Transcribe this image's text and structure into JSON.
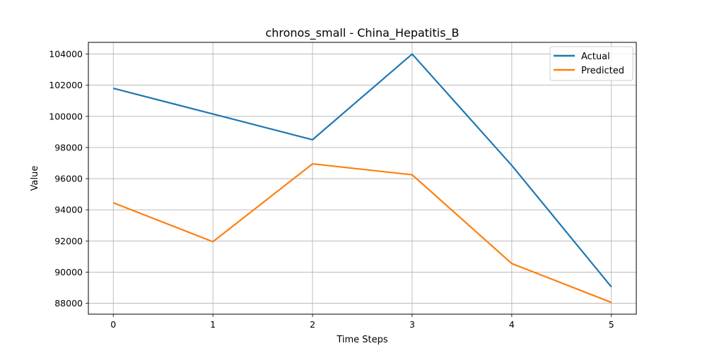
{
  "chart_data": {
    "type": "line",
    "title": "chronos_small - China_Hepatitis_B",
    "xlabel": "Time Steps",
    "ylabel": "Value",
    "x": [
      0,
      1,
      2,
      3,
      4,
      5
    ],
    "xticks": [
      "0",
      "1",
      "2",
      "3",
      "4",
      "5"
    ],
    "xlim": [
      -0.25,
      5.25
    ],
    "yticks": [
      "88000",
      "90000",
      "92000",
      "94000",
      "96000",
      "98000",
      "100000",
      "102000",
      "104000"
    ],
    "ylim": [
      87300,
      104750
    ],
    "grid": true,
    "legend_position": "top-right",
    "series": [
      {
        "name": "Actual",
        "color": "#1f77b4",
        "values": [
          101800,
          100150,
          98500,
          104000,
          96850,
          89050
        ]
      },
      {
        "name": "Predicted",
        "color": "#ff7f0e",
        "values": [
          94450,
          91950,
          96950,
          96250,
          90550,
          88050
        ]
      }
    ]
  }
}
